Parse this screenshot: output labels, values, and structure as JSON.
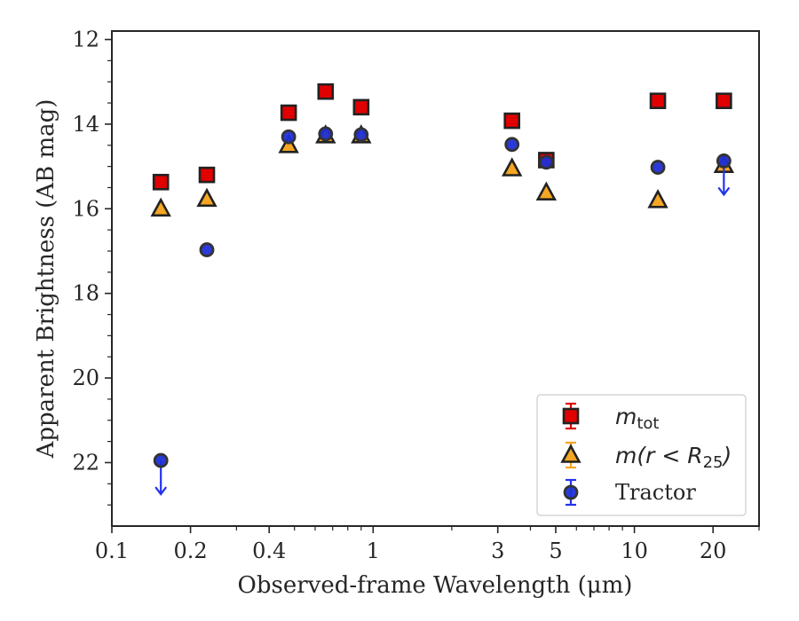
{
  "chart_data": {
    "type": "scatter",
    "title": "",
    "xlabel": "Observed-frame Wavelength (μm)",
    "ylabel": "Apparent Brightness (AB mag)",
    "xscale": "log",
    "xlim": [
      0.1,
      30
    ],
    "ylim": [
      23.5,
      11.8
    ],
    "y_inverted": true,
    "x_ticks": [
      0.1,
      0.2,
      0.4,
      1,
      3,
      5,
      10,
      20
    ],
    "x_tick_labels": [
      "0.1",
      "0.2",
      "0.4",
      "1",
      "3",
      "5",
      "10",
      "20"
    ],
    "y_ticks": [
      12,
      14,
      16,
      18,
      20,
      22
    ],
    "y_tick_labels": [
      "12",
      "14",
      "16",
      "18",
      "20",
      "22"
    ],
    "grid": false,
    "legend_position": "bottom-right",
    "legend": {
      "mtot_main": "m",
      "mtot_sub": "tot",
      "mr25_main": "m(r < R",
      "mr25_sub": "25",
      "mr25_close": ")",
      "tractor": "Tractor"
    },
    "series": [
      {
        "name": "m_tot",
        "marker": "square",
        "color": "#e00000",
        "x": [
          0.154,
          0.231,
          0.475,
          0.658,
          0.9,
          3.4,
          4.6,
          12.3,
          22
        ],
        "y": [
          15.37,
          15.2,
          13.73,
          13.23,
          13.6,
          13.92,
          14.85,
          13.45,
          13.45
        ]
      },
      {
        "name": "m(r<R25)",
        "marker": "triangle",
        "color": "#f5a623",
        "x": [
          0.154,
          0.231,
          0.475,
          0.658,
          0.9,
          3.4,
          4.6,
          12.3,
          22
        ],
        "y": [
          16.0,
          15.77,
          14.5,
          14.27,
          14.27,
          15.05,
          15.62,
          15.8,
          14.97
        ]
      },
      {
        "name": "Tractor",
        "marker": "circle",
        "color": "#1f2fd6",
        "x": [
          0.154,
          0.231,
          0.475,
          0.658,
          0.9,
          3.4,
          4.6,
          12.3,
          22
        ],
        "y": [
          21.95,
          16.97,
          14.3,
          14.23,
          14.25,
          14.48,
          14.9,
          15.02,
          14.87
        ],
        "upper_limits": [
          true,
          false,
          false,
          false,
          false,
          false,
          false,
          false,
          true
        ]
      }
    ]
  }
}
